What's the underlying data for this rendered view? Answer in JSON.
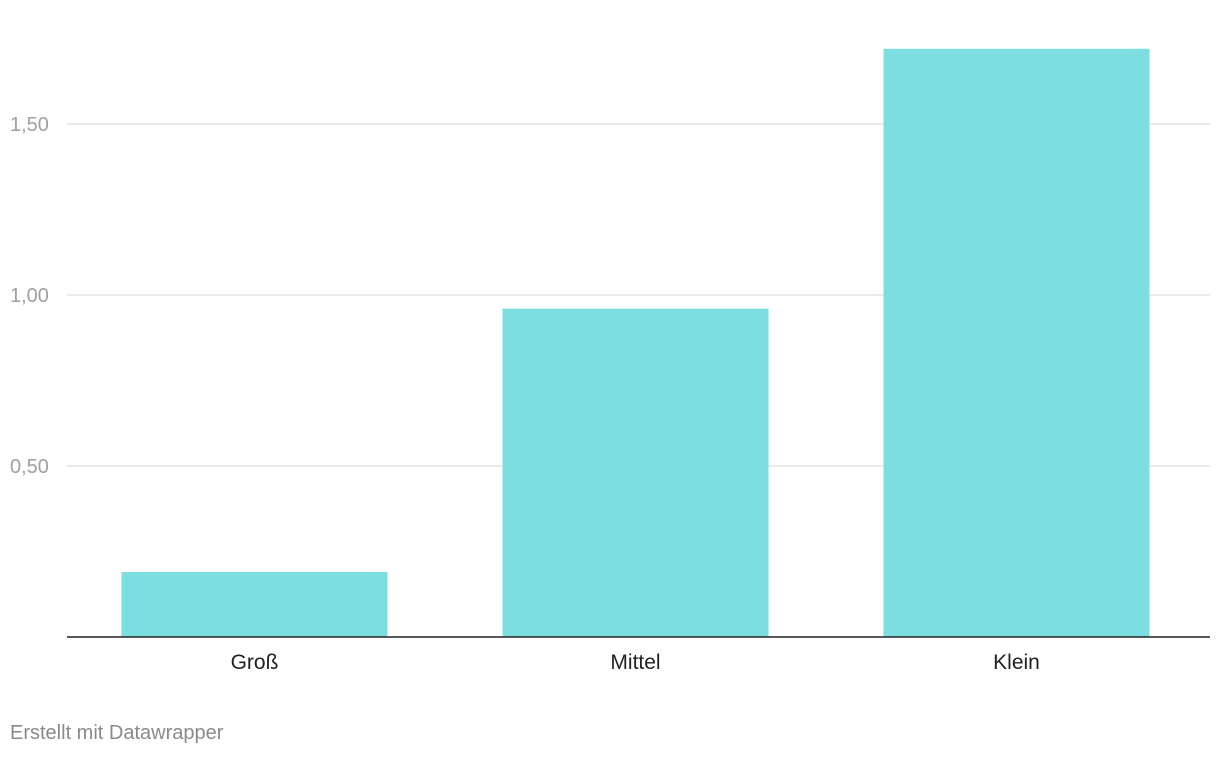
{
  "chart_data": {
    "type": "bar",
    "categories": [
      "Groß",
      "Mittel",
      "Klein"
    ],
    "values": [
      0.19,
      0.96,
      1.72
    ],
    "ylim": [
      0,
      1.75
    ],
    "yticks": [
      0.5,
      1.0,
      1.5
    ],
    "ytick_labels": [
      "0,50",
      "1,00",
      "1,50"
    ],
    "grid": true,
    "bar_color": "#7cdedf",
    "title": "",
    "xlabel": "",
    "ylabel": ""
  },
  "footer": {
    "credit": "Erstellt mit Datawrapper"
  }
}
